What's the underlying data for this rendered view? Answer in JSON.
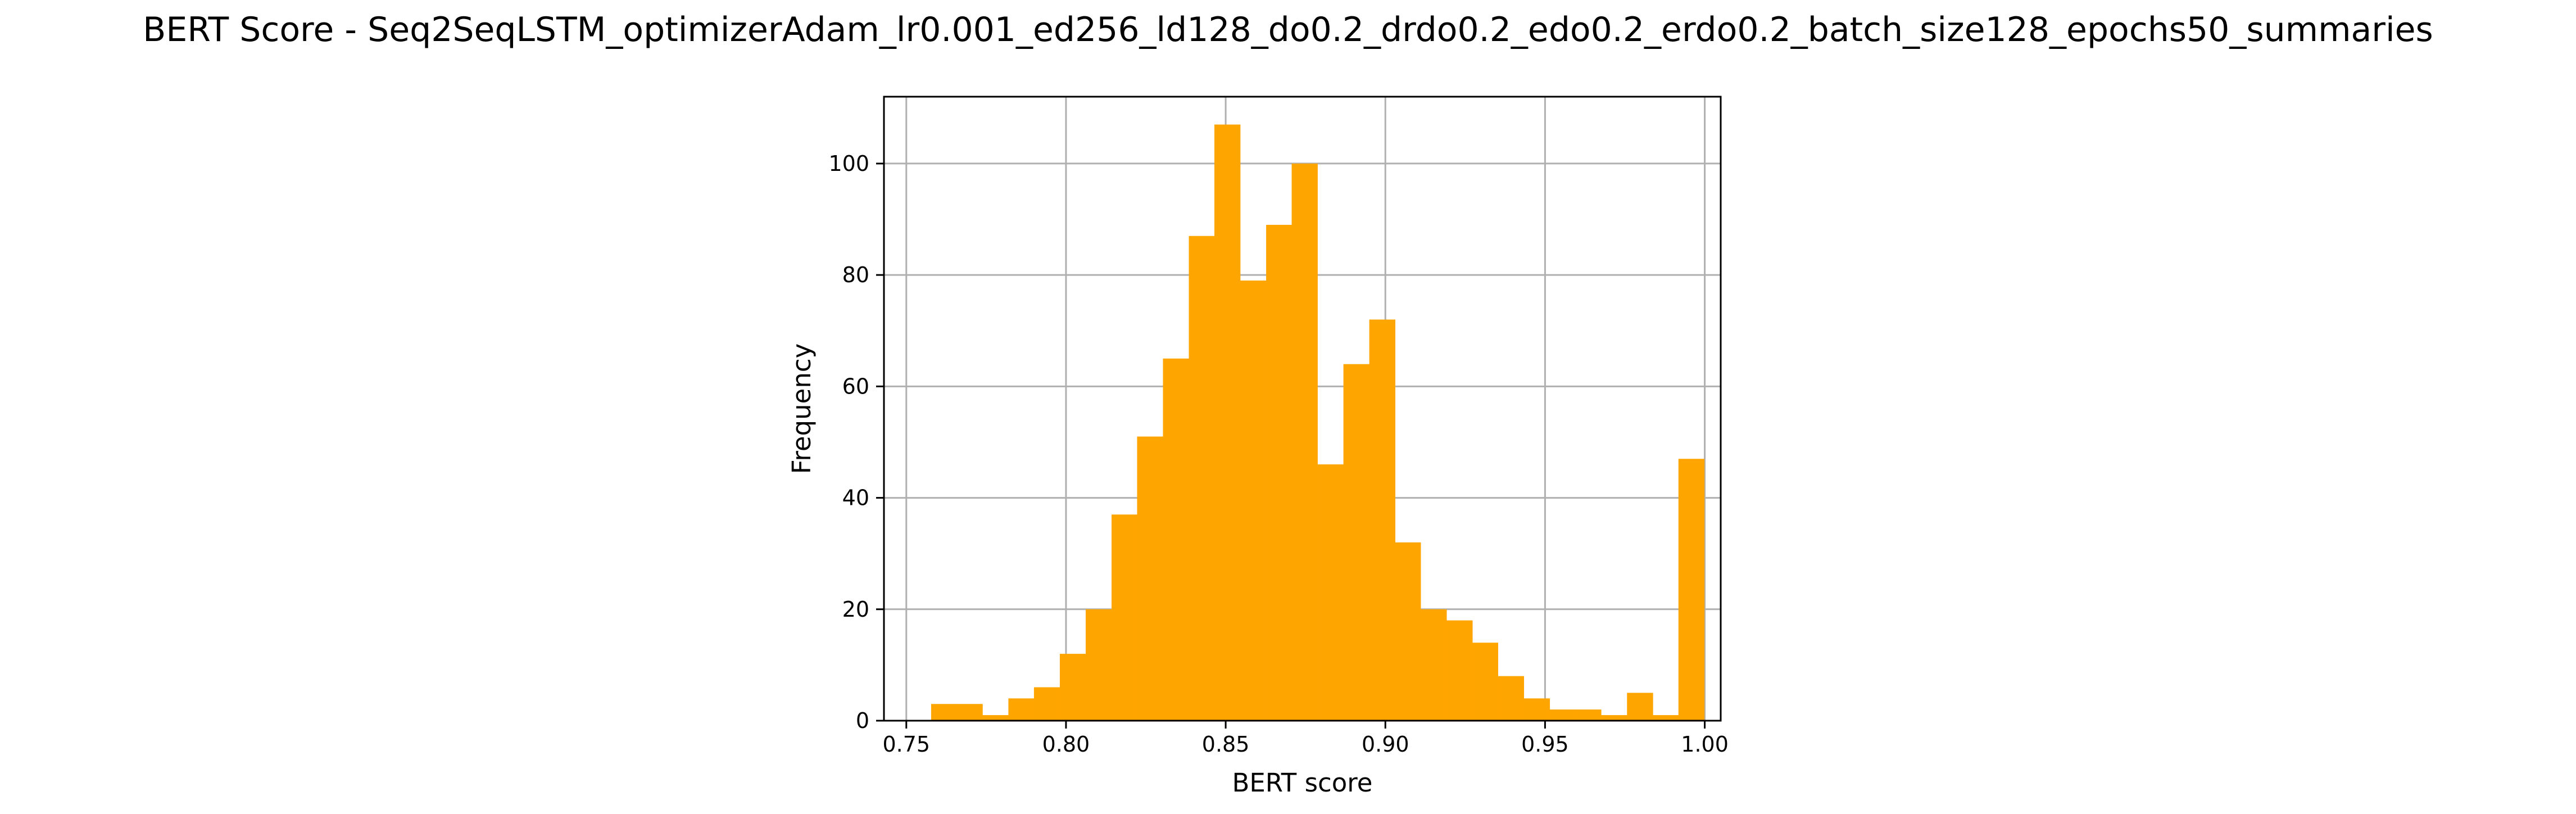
{
  "chart_data": {
    "type": "bar",
    "title": "BERT Score - Seq2SeqLSTM_optimizerAdam_lr0.001_ed256_ld128_do0.2_drdo0.2_edo0.2_erdo0.2_batch_size128_epochs50_summaries",
    "xlabel": "BERT score",
    "ylabel": "Frequency",
    "xlim": [
      0.743,
      1.005
    ],
    "ylim": [
      0,
      112
    ],
    "xticks": [
      0.75,
      0.8,
      0.85,
      0.9,
      0.95,
      1.0
    ],
    "xtick_labels": [
      "0.75",
      "0.80",
      "0.85",
      "0.90",
      "0.95",
      "1.00"
    ],
    "yticks": [
      0,
      20,
      40,
      60,
      80,
      100
    ],
    "ytick_labels": [
      "0",
      "20",
      "40",
      "60",
      "80",
      "100"
    ],
    "grid": true,
    "bar_color": "#FFA500",
    "bin_start": 0.7577,
    "bin_width": 0.00807,
    "bins": [
      {
        "x": 0.7618,
        "count": 3
      },
      {
        "x": 0.7698,
        "count": 3
      },
      {
        "x": 0.7779,
        "count": 1
      },
      {
        "x": 0.786,
        "count": 4
      },
      {
        "x": 0.794,
        "count": 6
      },
      {
        "x": 0.8021,
        "count": 12
      },
      {
        "x": 0.8102,
        "count": 20
      },
      {
        "x": 0.8183,
        "count": 37
      },
      {
        "x": 0.8263,
        "count": 51
      },
      {
        "x": 0.8344,
        "count": 65
      },
      {
        "x": 0.8425,
        "count": 87
      },
      {
        "x": 0.8505,
        "count": 107
      },
      {
        "x": 0.8586,
        "count": 79
      },
      {
        "x": 0.8667,
        "count": 89
      },
      {
        "x": 0.8747,
        "count": 100
      },
      {
        "x": 0.8828,
        "count": 46
      },
      {
        "x": 0.8909,
        "count": 64
      },
      {
        "x": 0.899,
        "count": 72
      },
      {
        "x": 0.907,
        "count": 32
      },
      {
        "x": 0.9151,
        "count": 20
      },
      {
        "x": 0.9232,
        "count": 18
      },
      {
        "x": 0.9312,
        "count": 14
      },
      {
        "x": 0.9393,
        "count": 8
      },
      {
        "x": 0.9474,
        "count": 4
      },
      {
        "x": 0.9554,
        "count": 2
      },
      {
        "x": 0.9635,
        "count": 2
      },
      {
        "x": 0.9716,
        "count": 1
      },
      {
        "x": 0.9797,
        "count": 5
      },
      {
        "x": 0.9877,
        "count": 1
      },
      {
        "x": 0.9958,
        "count": 47
      }
    ]
  }
}
